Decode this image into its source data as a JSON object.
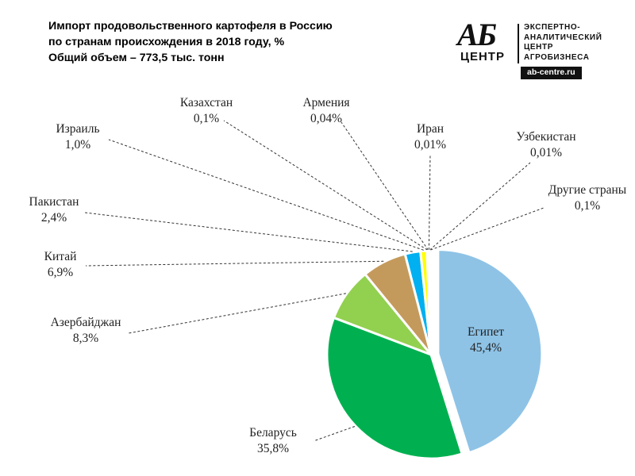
{
  "title": {
    "line1": "Импорт продовольственного  картофеля в Россию",
    "line2": "по странам происхождения  в 2018 году, %",
    "line3": "Общий объем – 773,5 тыс. тонн"
  },
  "logo": {
    "mark": "АБ",
    "mark_sub": "ЦЕНТР",
    "desc_line1": "ЭКСПЕРТНО-",
    "desc_line2": "АНАЛИТИЧЕСКИЙ",
    "desc_line3": "ЦЕНТР",
    "desc_line4": "АГРОБИЗНЕСА",
    "url": "ab-centre.ru"
  },
  "chart_data": {
    "type": "pie",
    "title": "Импорт продовольственного картофеля в Россию по странам происхождения в 2018 году, %",
    "subtitle": "Общий объем – 773,5 тыс. тонн",
    "unit": "%",
    "slices": [
      {
        "name": "Египет",
        "value": 45.4,
        "label": "45,4%",
        "color": "#8ec3e6"
      },
      {
        "name": "Беларусь",
        "value": 35.8,
        "label": "35,8%",
        "color": "#00b050"
      },
      {
        "name": "Азербайджан",
        "value": 8.3,
        "label": "8,3%",
        "color": "#92d050"
      },
      {
        "name": "Китай",
        "value": 6.9,
        "label": "6,9%",
        "color": "#c49a5c"
      },
      {
        "name": "Пакистан",
        "value": 2.4,
        "label": "2,4%",
        "color": "#00b0f0"
      },
      {
        "name": "Израиль",
        "value": 1.0,
        "label": "1,0%",
        "color": "#ffff00"
      },
      {
        "name": "Казахстан",
        "value": 0.1,
        "label": "0,1%",
        "color": "#7030a0"
      },
      {
        "name": "Армения",
        "value": 0.04,
        "label": "0,04%",
        "color": "#ff0000"
      },
      {
        "name": "Иран",
        "value": 0.01,
        "label": "0,01%",
        "color": "#ffc000"
      },
      {
        "name": "Узбекистан",
        "value": 0.01,
        "label": "0,01%",
        "color": "#0070c0"
      },
      {
        "name": "Другие страны",
        "value": 0.1,
        "label": "0,1%",
        "color": "#a5a5a5"
      }
    ],
    "exploded": [
      "Египет"
    ],
    "legend": "none",
    "labels": "outside-with-leader-lines"
  }
}
